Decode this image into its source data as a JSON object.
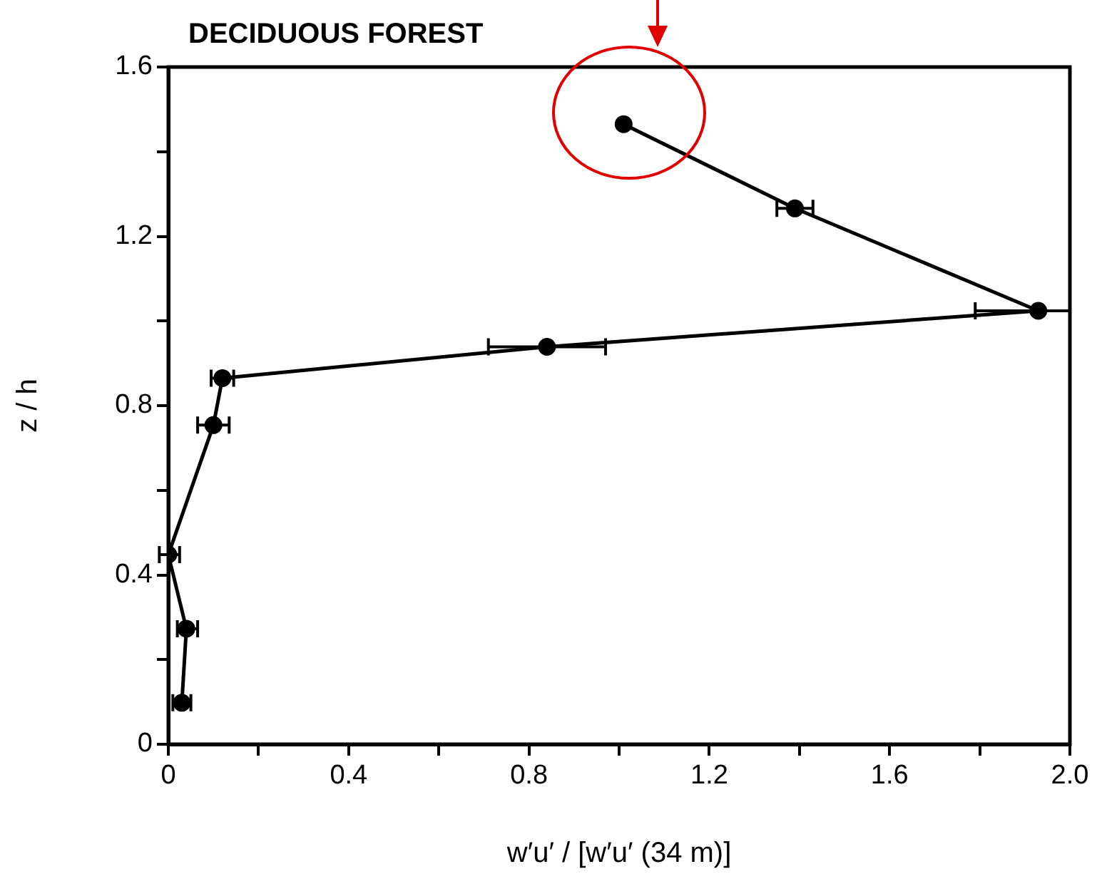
{
  "chart_data": {
    "type": "line",
    "title": "DECIDUOUS FOREST",
    "xlabel": "w′u′ / [w′u′ (34 m)]",
    "ylabel": "z / h",
    "marker": "circle",
    "line_style": "solid",
    "grid": false,
    "legend": false,
    "series": [
      {
        "color": "#000000",
        "x": [
          1.01,
          1.39,
          1.93,
          0.84,
          0.12,
          0.1,
          0.0,
          0.04,
          0.03
        ],
        "values": [
          1.465,
          1.266,
          1.024,
          0.939,
          0.865,
          0.754,
          0.448,
          0.273,
          0.098
        ],
        "xerrors": [
          null,
          [
            1.35,
            1.43
          ],
          [
            1.79,
            2.0
          ],
          [
            0.71,
            0.97
          ],
          [
            0.095,
            0.145
          ],
          [
            0.065,
            0.135
          ],
          [
            -0.02,
            0.025
          ],
          [
            0.02,
            0.065
          ],
          [
            0.01,
            0.05
          ]
        ]
      }
    ],
    "xlim": [
      0,
      2.0
    ],
    "ylim": [
      0,
      1.6
    ],
    "xticks": [
      0,
      {
        "value": 0.2,
        "label": null
      },
      0.4,
      {
        "value": 0.6,
        "label": null
      },
      0.8,
      {
        "value": 1.0,
        "label": null
      },
      1.2,
      {
        "value": 1.4,
        "label": null
      },
      1.6,
      {
        "value": 1.8,
        "label": null
      },
      {
        "value": 2,
        "label": "2.0"
      }
    ],
    "yticks": [
      0,
      {
        "value": 0.2,
        "label": null
      },
      0.4,
      {
        "value": 0.6,
        "label": null
      },
      0.8,
      {
        "value": 1.0,
        "label": null
      },
      1.2,
      {
        "value": 1.4,
        "label": null
      },
      1.6
    ]
  }
}
